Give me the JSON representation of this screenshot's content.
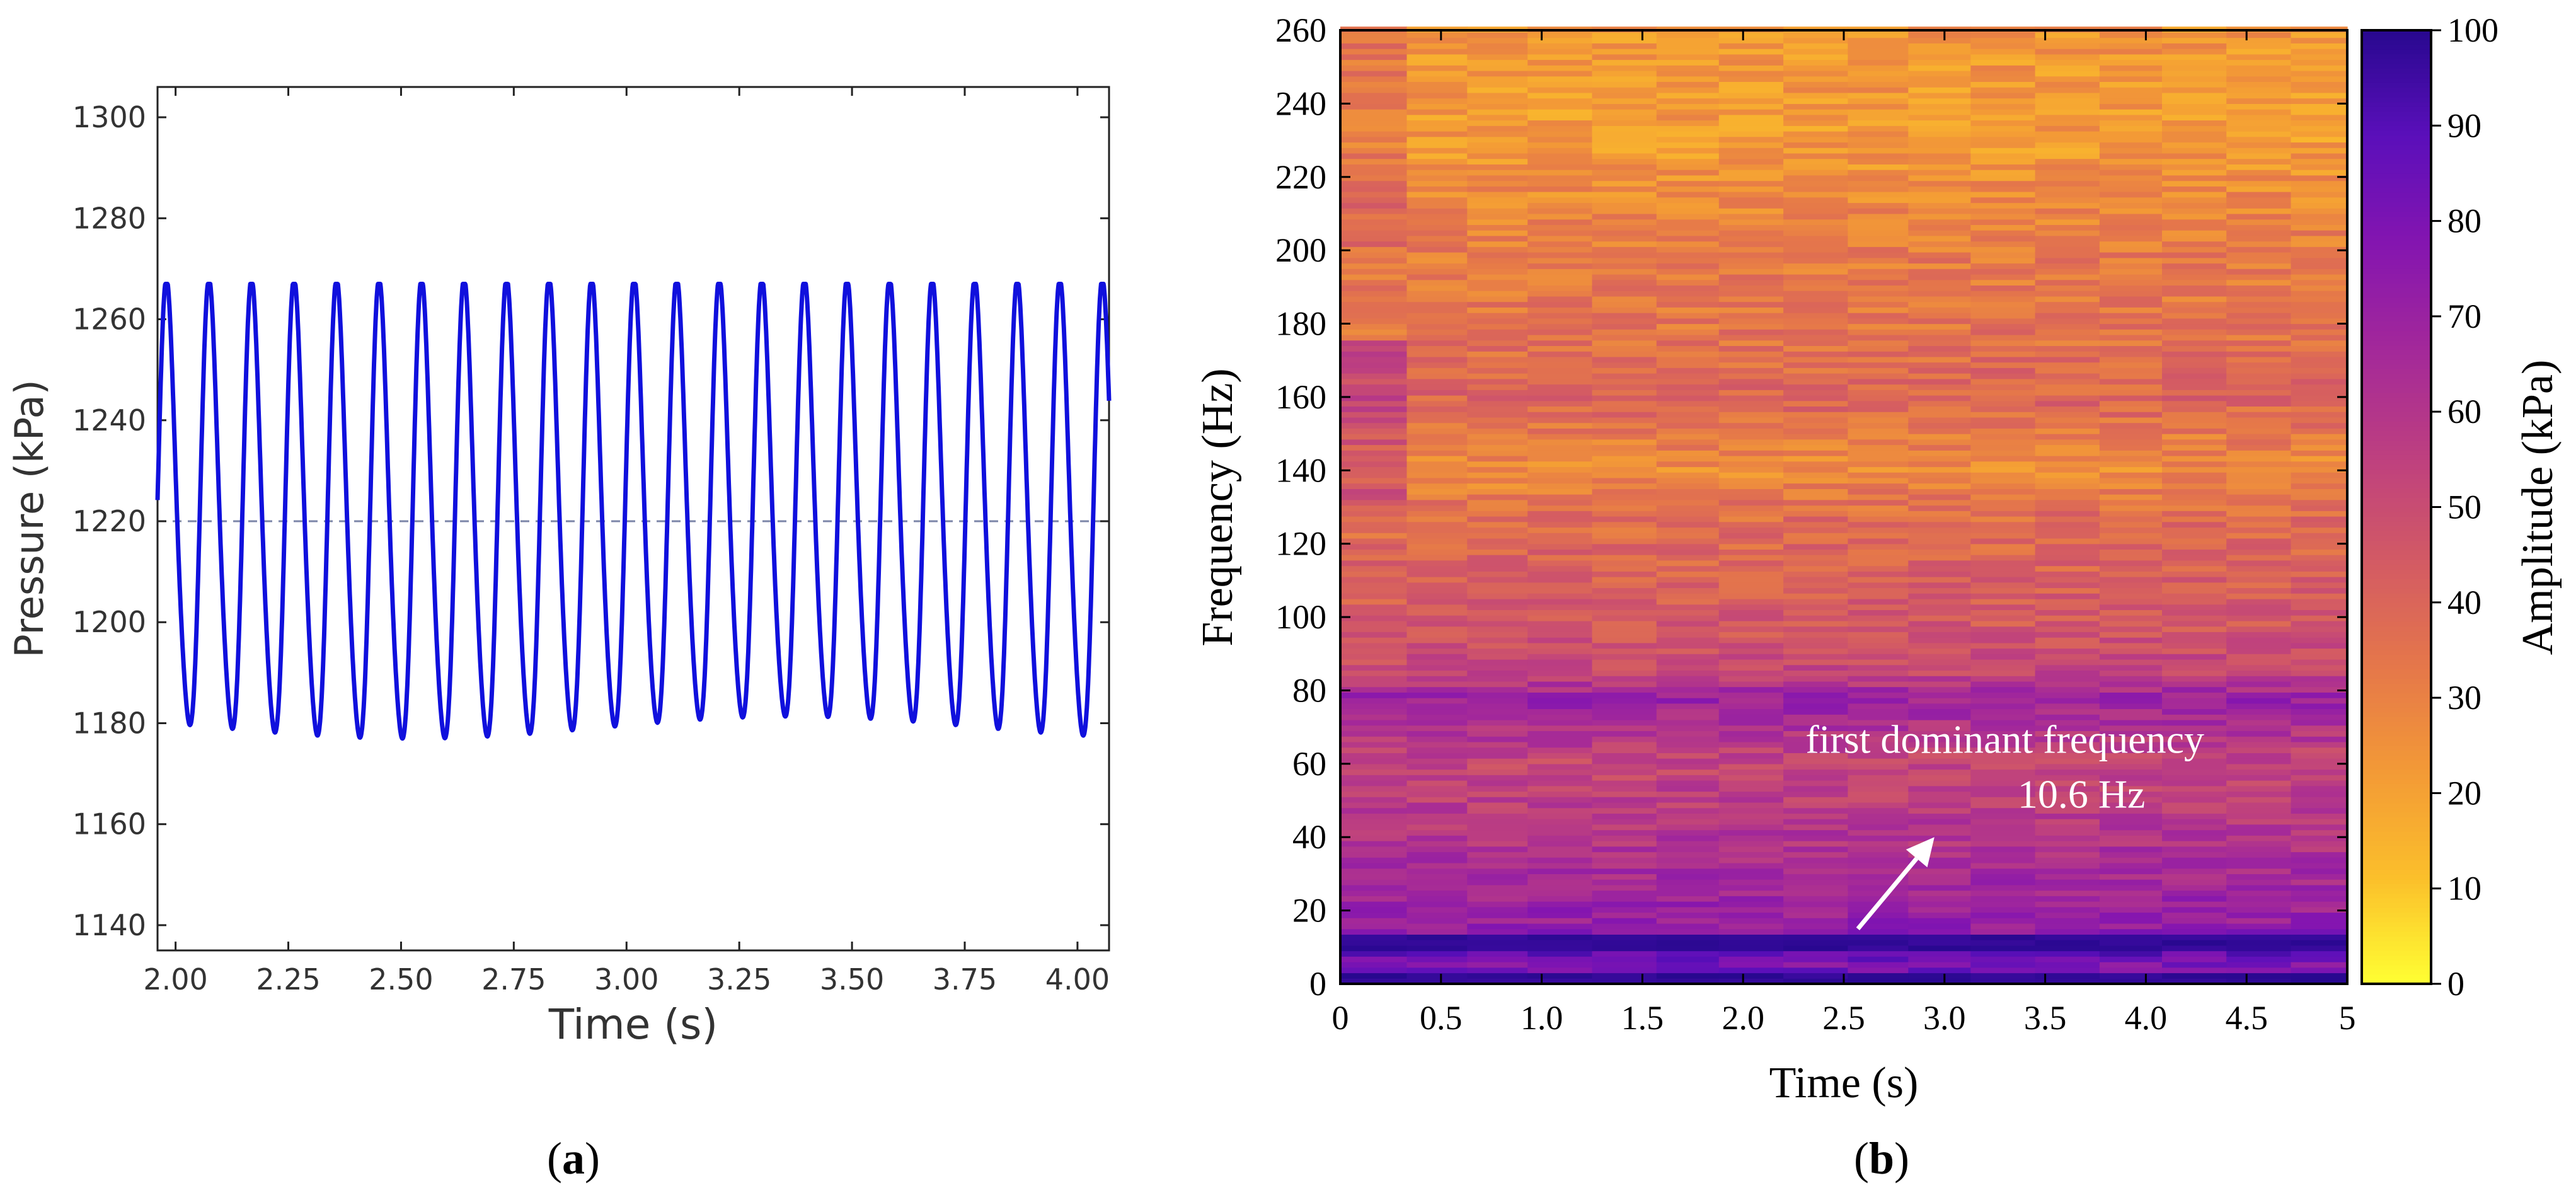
{
  "panels": {
    "a": {
      "label": "a"
    },
    "b": {
      "label": "b"
    }
  },
  "chart_data": [
    {
      "id": "a",
      "type": "line",
      "title": "",
      "xlabel": "Time (s)",
      "ylabel": "Pressure (kPa)",
      "xlim": [
        1.96,
        4.07
      ],
      "ylim": [
        1135,
        1306
      ],
      "xticks": [
        2.0,
        2.25,
        2.5,
        2.75,
        3.0,
        3.25,
        3.5,
        3.75,
        4.0
      ],
      "xtick_labels": [
        "2.00",
        "2.25",
        "2.50",
        "2.75",
        "3.00",
        "3.25",
        "3.50",
        "3.75",
        "4.00"
      ],
      "yticks": [
        1140,
        1160,
        1180,
        1200,
        1220,
        1240,
        1260,
        1280,
        1300
      ],
      "ytick_labels": [
        "1140",
        "1160",
        "1180",
        "1200",
        "1220",
        "1240",
        "1260",
        "1280",
        "1300"
      ],
      "reference_line": {
        "y": 1220,
        "style": "dashed"
      },
      "series": [
        {
          "name": "pressure",
          "color": "#1010dd",
          "signal": {
            "mean": 1220,
            "amplitude": 44,
            "frequency_hz": 10.6,
            "x_start": 1.96,
            "x_end": 4.07
          }
        }
      ]
    },
    {
      "id": "b",
      "type": "heatmap",
      "title": "",
      "xlabel": "Time (s)",
      "ylabel": "Frequency (Hz)",
      "colorbar_label": "Amplitude (kPa)",
      "xlim": [
        0,
        5
      ],
      "ylim": [
        0,
        260
      ],
      "clim": [
        0,
        100
      ],
      "xticks": [
        0,
        0.5,
        1.0,
        1.5,
        2.0,
        2.5,
        3.0,
        3.5,
        4.0,
        4.5,
        5
      ],
      "xtick_labels": [
        "0",
        "0.5",
        "1.0",
        "1.5",
        "2.0",
        "2.5",
        "3.0",
        "3.5",
        "4.0",
        "4.5",
        "5"
      ],
      "yticks": [
        0,
        20,
        40,
        60,
        80,
        100,
        120,
        140,
        160,
        180,
        200,
        220,
        240,
        260
      ],
      "ytick_labels": [
        "0",
        "20",
        "40",
        "60",
        "80",
        "100",
        "120",
        "140",
        "160",
        "180",
        "200",
        "220",
        "240",
        "260"
      ],
      "cticks": [
        0,
        10,
        20,
        30,
        40,
        50,
        60,
        70,
        80,
        90,
        100
      ],
      "ctick_labels": [
        "0",
        "10",
        "20",
        "30",
        "40",
        "50",
        "60",
        "70",
        "80",
        "90",
        "100"
      ],
      "colormap": [
        "#ffff33",
        "#fbbf2b",
        "#f39a36",
        "#e5774a",
        "#d35a64",
        "#bd3f80",
        "#a3289a",
        "#8415b0",
        "#5b0fba",
        "#28088f"
      ],
      "time_bin_edges": [
        0,
        0.33,
        0.63,
        0.93,
        1.25,
        1.57,
        1.88,
        2.2,
        2.52,
        2.82,
        3.13,
        3.45,
        3.77,
        4.08,
        4.4,
        4.72,
        5
      ],
      "frequency_bin_hz": 1.5,
      "amplitude_profile": [
        {
          "f": 0,
          "a": 95
        },
        {
          "f": 5,
          "a": 78
        },
        {
          "f": 10.6,
          "a": 92
        },
        {
          "f": 15,
          "a": 72
        },
        {
          "f": 25,
          "a": 68
        },
        {
          "f": 40,
          "a": 60
        },
        {
          "f": 60,
          "a": 52
        },
        {
          "f": 78,
          "a": 70
        },
        {
          "f": 85,
          "a": 52
        },
        {
          "f": 100,
          "a": 44
        },
        {
          "f": 130,
          "a": 36
        },
        {
          "f": 140,
          "a": 26
        },
        {
          "f": 160,
          "a": 40
        },
        {
          "f": 180,
          "a": 34
        },
        {
          "f": 200,
          "a": 32
        },
        {
          "f": 230,
          "a": 22
        },
        {
          "f": 260,
          "a": 24
        }
      ],
      "annotation": {
        "lines": [
          "first dominant frequency",
          "10.6 Hz"
        ],
        "arrow_from": [
          2.57,
          15
        ],
        "arrow_to": [
          2.95,
          40
        ],
        "text_at": [
          3.3,
          63
        ],
        "color": "#ffffff"
      }
    }
  ]
}
